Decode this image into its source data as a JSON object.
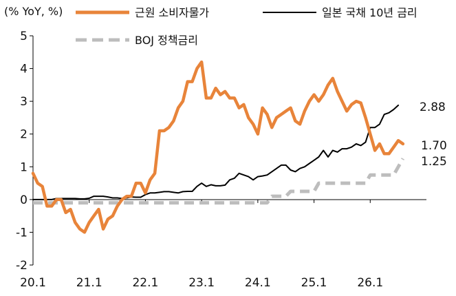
{
  "chart_data": {
    "type": "line",
    "ylabel": "(% YoY, %)",
    "ylim": [
      -2,
      5
    ],
    "yticks": [
      5,
      4,
      3,
      2,
      1,
      0,
      -1,
      -2
    ],
    "ytick_labels": [
      "5",
      "4",
      "3",
      "2",
      "1",
      "0",
      "-1",
      "-2"
    ],
    "xlim": [
      2020.0,
      2027.0
    ],
    "xticks": [
      2020.0,
      2021.0,
      2022.0,
      2023.0,
      2024.0,
      2025.0,
      2026.0
    ],
    "xtick_labels": [
      "20.1",
      "21.1",
      "22.1",
      "23.1",
      "24.1",
      "25.1",
      "26.1"
    ],
    "grid": false,
    "legend_position": "top",
    "series": [
      {
        "name": "근원 소비자물가",
        "color": "#e8843a",
        "style": "solid",
        "end_label": "1.70",
        "points": [
          [
            2020.0,
            0.8
          ],
          [
            2020.083,
            0.5
          ],
          [
            2020.167,
            0.4
          ],
          [
            2020.25,
            -0.2
          ],
          [
            2020.333,
            -0.2
          ],
          [
            2020.417,
            0.0
          ],
          [
            2020.5,
            0.0
          ],
          [
            2020.583,
            -0.4
          ],
          [
            2020.667,
            -0.3
          ],
          [
            2020.75,
            -0.7
          ],
          [
            2020.833,
            -0.9
          ],
          [
            2020.917,
            -1.0
          ],
          [
            2021.0,
            -0.7
          ],
          [
            2021.083,
            -0.5
          ],
          [
            2021.167,
            -0.3
          ],
          [
            2021.25,
            -0.9
          ],
          [
            2021.333,
            -0.6
          ],
          [
            2021.417,
            -0.5
          ],
          [
            2021.5,
            -0.2
          ],
          [
            2021.583,
            0.0
          ],
          [
            2021.667,
            0.1
          ],
          [
            2021.75,
            0.1
          ],
          [
            2021.833,
            0.5
          ],
          [
            2021.917,
            0.5
          ],
          [
            2022.0,
            0.2
          ],
          [
            2022.083,
            0.6
          ],
          [
            2022.167,
            0.8
          ],
          [
            2022.25,
            2.1
          ],
          [
            2022.333,
            2.1
          ],
          [
            2022.417,
            2.2
          ],
          [
            2022.5,
            2.4
          ],
          [
            2022.583,
            2.8
          ],
          [
            2022.667,
            3.0
          ],
          [
            2022.75,
            3.6
          ],
          [
            2022.833,
            3.6
          ],
          [
            2022.917,
            4.0
          ],
          [
            2023.0,
            4.2
          ],
          [
            2023.083,
            3.1
          ],
          [
            2023.167,
            3.1
          ],
          [
            2023.25,
            3.4
          ],
          [
            2023.333,
            3.2
          ],
          [
            2023.417,
            3.3
          ],
          [
            2023.5,
            3.1
          ],
          [
            2023.583,
            3.1
          ],
          [
            2023.667,
            2.8
          ],
          [
            2023.75,
            2.9
          ],
          [
            2023.833,
            2.5
          ],
          [
            2023.917,
            2.3
          ],
          [
            2024.0,
            2.0
          ],
          [
            2024.083,
            2.8
          ],
          [
            2024.167,
            2.6
          ],
          [
            2024.25,
            2.2
          ],
          [
            2024.333,
            2.5
          ],
          [
            2024.417,
            2.6
          ],
          [
            2024.5,
            2.7
          ],
          [
            2024.583,
            2.8
          ],
          [
            2024.667,
            2.4
          ],
          [
            2024.75,
            2.3
          ],
          [
            2024.833,
            2.7
          ],
          [
            2024.917,
            3.0
          ],
          [
            2025.0,
            3.2
          ],
          [
            2025.083,
            3.0
          ],
          [
            2025.167,
            3.2
          ],
          [
            2025.25,
            3.5
          ],
          [
            2025.333,
            3.7
          ],
          [
            2025.417,
            3.3
          ],
          [
            2025.5,
            3.0
          ],
          [
            2025.583,
            2.7
          ],
          [
            2025.667,
            2.9
          ],
          [
            2025.75,
            3.0
          ],
          [
            2025.833,
            2.95
          ],
          [
            2025.917,
            2.5
          ],
          [
            2026.0,
            2.0
          ],
          [
            2026.083,
            1.5
          ],
          [
            2026.167,
            1.7
          ],
          [
            2026.25,
            1.4
          ],
          [
            2026.333,
            1.4
          ],
          [
            2026.417,
            1.6
          ],
          [
            2026.5,
            1.8
          ],
          [
            2026.583,
            1.7
          ]
        ]
      },
      {
        "name": "일본 국채 10년 금리",
        "color": "#000000",
        "style": "solid",
        "end_label": "2.88",
        "points": [
          [
            2020.0,
            0.0
          ],
          [
            2020.083,
            0.0
          ],
          [
            2020.167,
            0.0
          ],
          [
            2020.25,
            0.0
          ],
          [
            2020.333,
            0.0
          ],
          [
            2020.417,
            0.03
          ],
          [
            2020.5,
            0.03
          ],
          [
            2020.583,
            0.03
          ],
          [
            2020.667,
            0.03
          ],
          [
            2020.75,
            0.03
          ],
          [
            2020.833,
            0.02
          ],
          [
            2020.917,
            0.02
          ],
          [
            2021.0,
            0.04
          ],
          [
            2021.083,
            0.1
          ],
          [
            2021.167,
            0.1
          ],
          [
            2021.25,
            0.1
          ],
          [
            2021.333,
            0.08
          ],
          [
            2021.417,
            0.05
          ],
          [
            2021.5,
            0.05
          ],
          [
            2021.583,
            0.03
          ],
          [
            2021.667,
            0.05
          ],
          [
            2021.75,
            0.08
          ],
          [
            2021.833,
            0.07
          ],
          [
            2021.917,
            0.07
          ],
          [
            2022.0,
            0.15
          ],
          [
            2022.083,
            0.2
          ],
          [
            2022.167,
            0.2
          ],
          [
            2022.25,
            0.22
          ],
          [
            2022.333,
            0.24
          ],
          [
            2022.417,
            0.24
          ],
          [
            2022.5,
            0.22
          ],
          [
            2022.583,
            0.2
          ],
          [
            2022.667,
            0.24
          ],
          [
            2022.75,
            0.25
          ],
          [
            2022.833,
            0.25
          ],
          [
            2022.917,
            0.4
          ],
          [
            2023.0,
            0.5
          ],
          [
            2023.083,
            0.4
          ],
          [
            2023.167,
            0.45
          ],
          [
            2023.25,
            0.42
          ],
          [
            2023.333,
            0.42
          ],
          [
            2023.417,
            0.44
          ],
          [
            2023.5,
            0.6
          ],
          [
            2023.583,
            0.65
          ],
          [
            2023.667,
            0.8
          ],
          [
            2023.75,
            0.75
          ],
          [
            2023.833,
            0.7
          ],
          [
            2023.917,
            0.6
          ],
          [
            2024.0,
            0.7
          ],
          [
            2024.083,
            0.72
          ],
          [
            2024.167,
            0.75
          ],
          [
            2024.25,
            0.85
          ],
          [
            2024.333,
            0.95
          ],
          [
            2024.417,
            1.05
          ],
          [
            2024.5,
            1.05
          ],
          [
            2024.583,
            0.9
          ],
          [
            2024.667,
            0.85
          ],
          [
            2024.75,
            0.95
          ],
          [
            2024.833,
            1.0
          ],
          [
            2024.917,
            1.1
          ],
          [
            2025.0,
            1.2
          ],
          [
            2025.083,
            1.3
          ],
          [
            2025.167,
            1.5
          ],
          [
            2025.25,
            1.3
          ],
          [
            2025.333,
            1.5
          ],
          [
            2025.417,
            1.45
          ],
          [
            2025.5,
            1.55
          ],
          [
            2025.583,
            1.55
          ],
          [
            2025.667,
            1.6
          ],
          [
            2025.75,
            1.7
          ],
          [
            2025.833,
            1.65
          ],
          [
            2025.917,
            1.75
          ],
          [
            2026.0,
            2.2
          ],
          [
            2026.083,
            2.2
          ],
          [
            2026.167,
            2.3
          ],
          [
            2026.25,
            2.6
          ],
          [
            2026.333,
            2.65
          ],
          [
            2026.417,
            2.75
          ],
          [
            2026.5,
            2.88
          ]
        ]
      },
      {
        "name": "BOJ 정책금리",
        "color": "#bdbdbd",
        "style": "dashed",
        "end_label": "1.25",
        "points": [
          [
            2020.0,
            -0.1
          ],
          [
            2024.167,
            -0.1
          ],
          [
            2024.25,
            0.1
          ],
          [
            2024.5,
            0.1
          ],
          [
            2024.583,
            0.25
          ],
          [
            2025.0,
            0.25
          ],
          [
            2025.083,
            0.5
          ],
          [
            2025.917,
            0.5
          ],
          [
            2026.0,
            0.75
          ],
          [
            2026.417,
            0.75
          ],
          [
            2026.5,
            1.0
          ],
          [
            2026.583,
            1.25
          ]
        ]
      }
    ]
  }
}
